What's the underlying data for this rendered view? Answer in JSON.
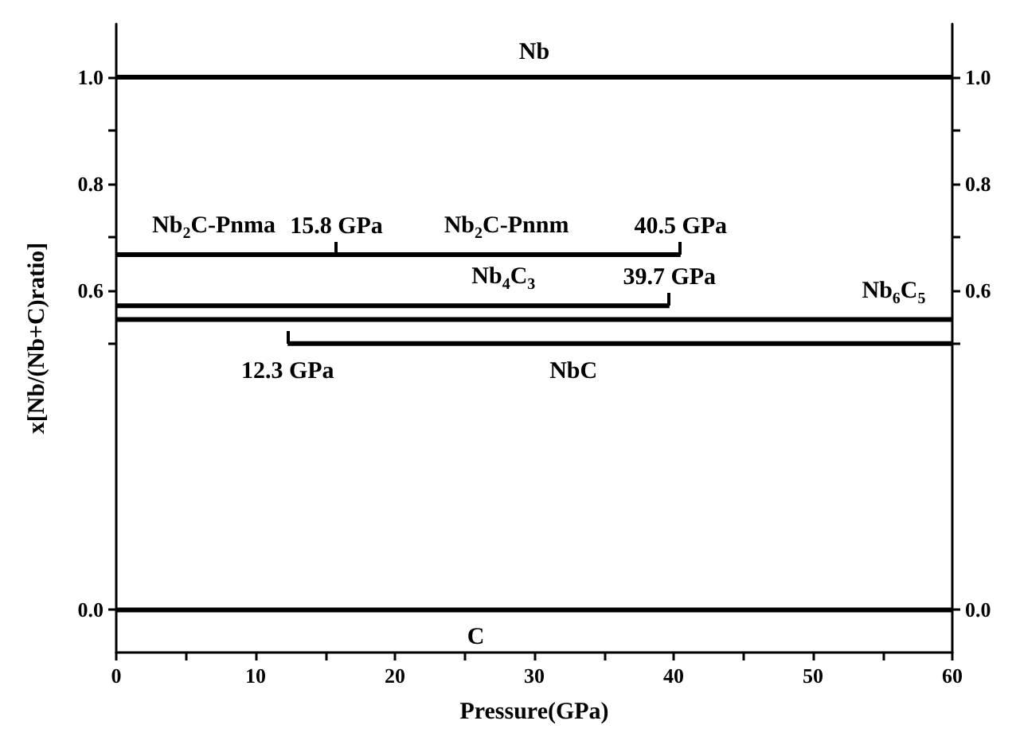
{
  "chart_data": {
    "type": "line",
    "xlabel": "Pressure(GPa)",
    "ylabel": "x[Nb/(Nb+C)ratio]",
    "grid": false,
    "marker": "none",
    "line_style": "solid",
    "xlim": [
      0,
      60
    ],
    "xticks": [
      0,
      {
        "value": 5,
        "label": null
      },
      10,
      {
        "value": 15,
        "label": null
      },
      20,
      {
        "value": 25,
        "label": null
      },
      30,
      {
        "value": 35,
        "label": null
      },
      40,
      {
        "value": 45,
        "label": null
      },
      50,
      {
        "value": 55,
        "label": null
      },
      60
    ],
    "ylim": [
      -0.08,
      1.1
    ],
    "yticks": [
      {
        "value": 0,
        "label": "0.0"
      },
      {
        "value": 0.5,
        "label": null
      },
      0.6,
      {
        "value": 0.7,
        "label": null
      },
      0.8,
      {
        "value": 0.9,
        "label": null
      },
      {
        "value": 1,
        "label": "1.0"
      }
    ],
    "y2lim": [
      -0.08,
      1.1
    ],
    "y2ticks": [
      {
        "value": 0,
        "label": "0.0"
      },
      {
        "value": 0.5,
        "label": null
      },
      0.6,
      {
        "value": 0.7,
        "label": null
      },
      0.8,
      {
        "value": 0.9,
        "label": null
      },
      {
        "value": 1,
        "label": "1.0"
      }
    ],
    "series": [
      {
        "name": "Nb",
        "color": "#000000",
        "x": [
          0,
          60
        ],
        "values": [
          1,
          1
        ]
      },
      {
        "color": "#000000",
        "x": [
          0,
          15.8,
          40.5
        ],
        "values": [
          0.667,
          0.667,
          0.667
        ]
      },
      {
        "name": "Nb$_{4}$C$_{3}$",
        "color": "#000000",
        "x": [
          0,
          39.7
        ],
        "values": [
          0.571,
          0.571
        ]
      },
      {
        "name": "Nb$_{6}$C$_{5}$",
        "color": "#000000",
        "x": [
          0,
          60
        ],
        "values": [
          0.545,
          0.545
        ]
      },
      {
        "name": "NbC",
        "color": "#000000",
        "x": [
          12.3,
          60
        ],
        "values": [
          0.5,
          0.5
        ]
      },
      {
        "name": "C",
        "color": "#000000",
        "x": [
          0,
          60
        ],
        "values": [
          0,
          0
        ]
      }
    ],
    "annotations": [
      {
        "text": "Nb$_{2}$C-Pnma",
        "x": 7,
        "y": 0.667
      },
      {
        "text": "15.8 GPa",
        "x": 15.8,
        "y": 0.667
      },
      {
        "text": "Nb$_{2}$C-Pnnm",
        "x": 28,
        "y": 0.667
      },
      {
        "text": "40.5 GPa",
        "x": 40.5,
        "y": 0.667
      },
      {
        "text": "39.7 GPa",
        "x": 39.7,
        "y": 0.571
      },
      {
        "text": "12.3 GPa",
        "x": 12.3,
        "y": 0.5
      }
    ]
  }
}
